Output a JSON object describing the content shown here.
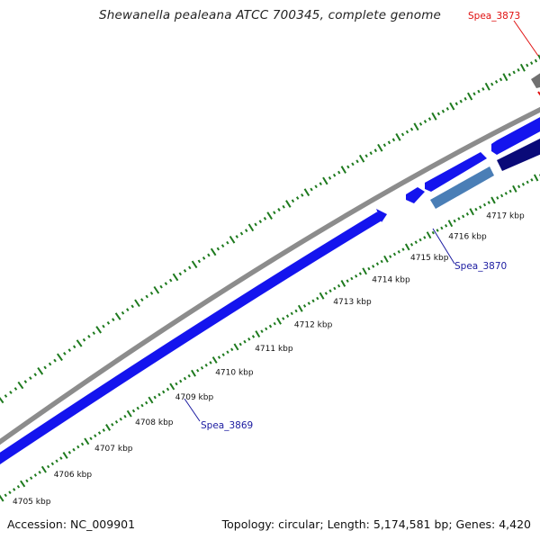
{
  "title": "Shewanella pealeana ATCC 700345, complete genome",
  "footer": {
    "accession": "Accession: NC_009901",
    "summary": "Topology: circular; Length: 5,174,581 bp; Genes: 4,420"
  },
  "colors": {
    "backbone": "#8c8c8c",
    "gene_blue": "#1414ee",
    "gene_dark": "#0a0a78",
    "gene_steel": "#4a7eb6",
    "gene_gray": "#707070",
    "tick_green": "#1e7a1e",
    "label_blue": "#1a1aa0",
    "label_red": "#e01010"
  },
  "ticks": [
    {
      "label": "4705 kbp"
    },
    {
      "label": "4706 kbp"
    },
    {
      "label": "4707 kbp"
    },
    {
      "label": "4708 kbp"
    },
    {
      "label": "4709 kbp"
    },
    {
      "label": "4710 kbp"
    },
    {
      "label": "4711 kbp"
    },
    {
      "label": "4712 kbp"
    },
    {
      "label": "4713 kbp"
    },
    {
      "label": "4714 kbp"
    },
    {
      "label": "4715 kbp"
    },
    {
      "label": "4716 kbp"
    },
    {
      "label": "4717 kbp"
    }
  ],
  "gene_labels": [
    {
      "name": "Spea_3869",
      "color": "#1a1aa0"
    },
    {
      "name": "Spea_3870",
      "color": "#1a1aa0"
    },
    {
      "name": "Spea_3873",
      "color": "#e01010"
    }
  ]
}
